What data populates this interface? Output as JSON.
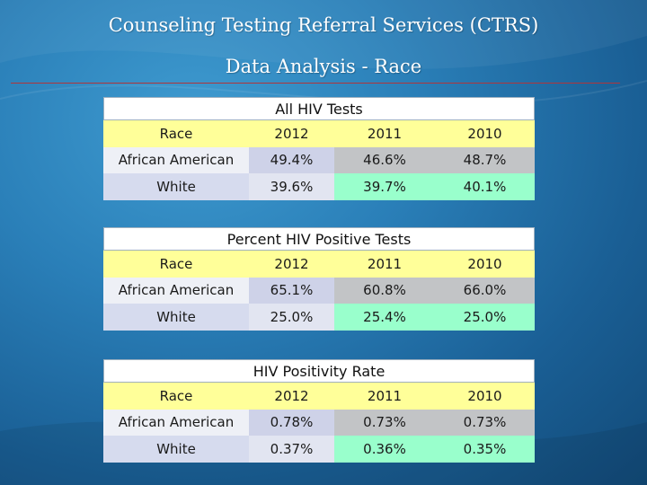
{
  "slide": {
    "title_line1": "Counseling Testing Referral Services (CTRS)",
    "title_line2": "Data Analysis - Race"
  },
  "colors": {
    "header_row": "#ffff99",
    "row1_values": "#c2c4c6",
    "row2_values": "#99ffcc",
    "rule": "#b0353a"
  },
  "tables": [
    {
      "title": "All HIV Tests",
      "columns": [
        "Race",
        "2012",
        "2011",
        "2010"
      ],
      "rows": [
        [
          "African American",
          "49.4%",
          "46.6%",
          "48.7%"
        ],
        [
          "White",
          "39.6%",
          "39.7%",
          "40.1%"
        ]
      ]
    },
    {
      "title": "Percent HIV Positive Tests",
      "columns": [
        "Race",
        "2012",
        "2011",
        "2010"
      ],
      "rows": [
        [
          "African American",
          "65.1%",
          "60.8%",
          "66.0%"
        ],
        [
          "White",
          "25.0%",
          "25.4%",
          "25.0%"
        ]
      ]
    },
    {
      "title": "HIV Positivity Rate",
      "columns": [
        "Race",
        "2012",
        "2011",
        "2010"
      ],
      "rows": [
        [
          "African American",
          "0.78%",
          "0.73%",
          "0.73%"
        ],
        [
          "White",
          "0.37%",
          "0.36%",
          "0.35%"
        ]
      ]
    }
  ]
}
